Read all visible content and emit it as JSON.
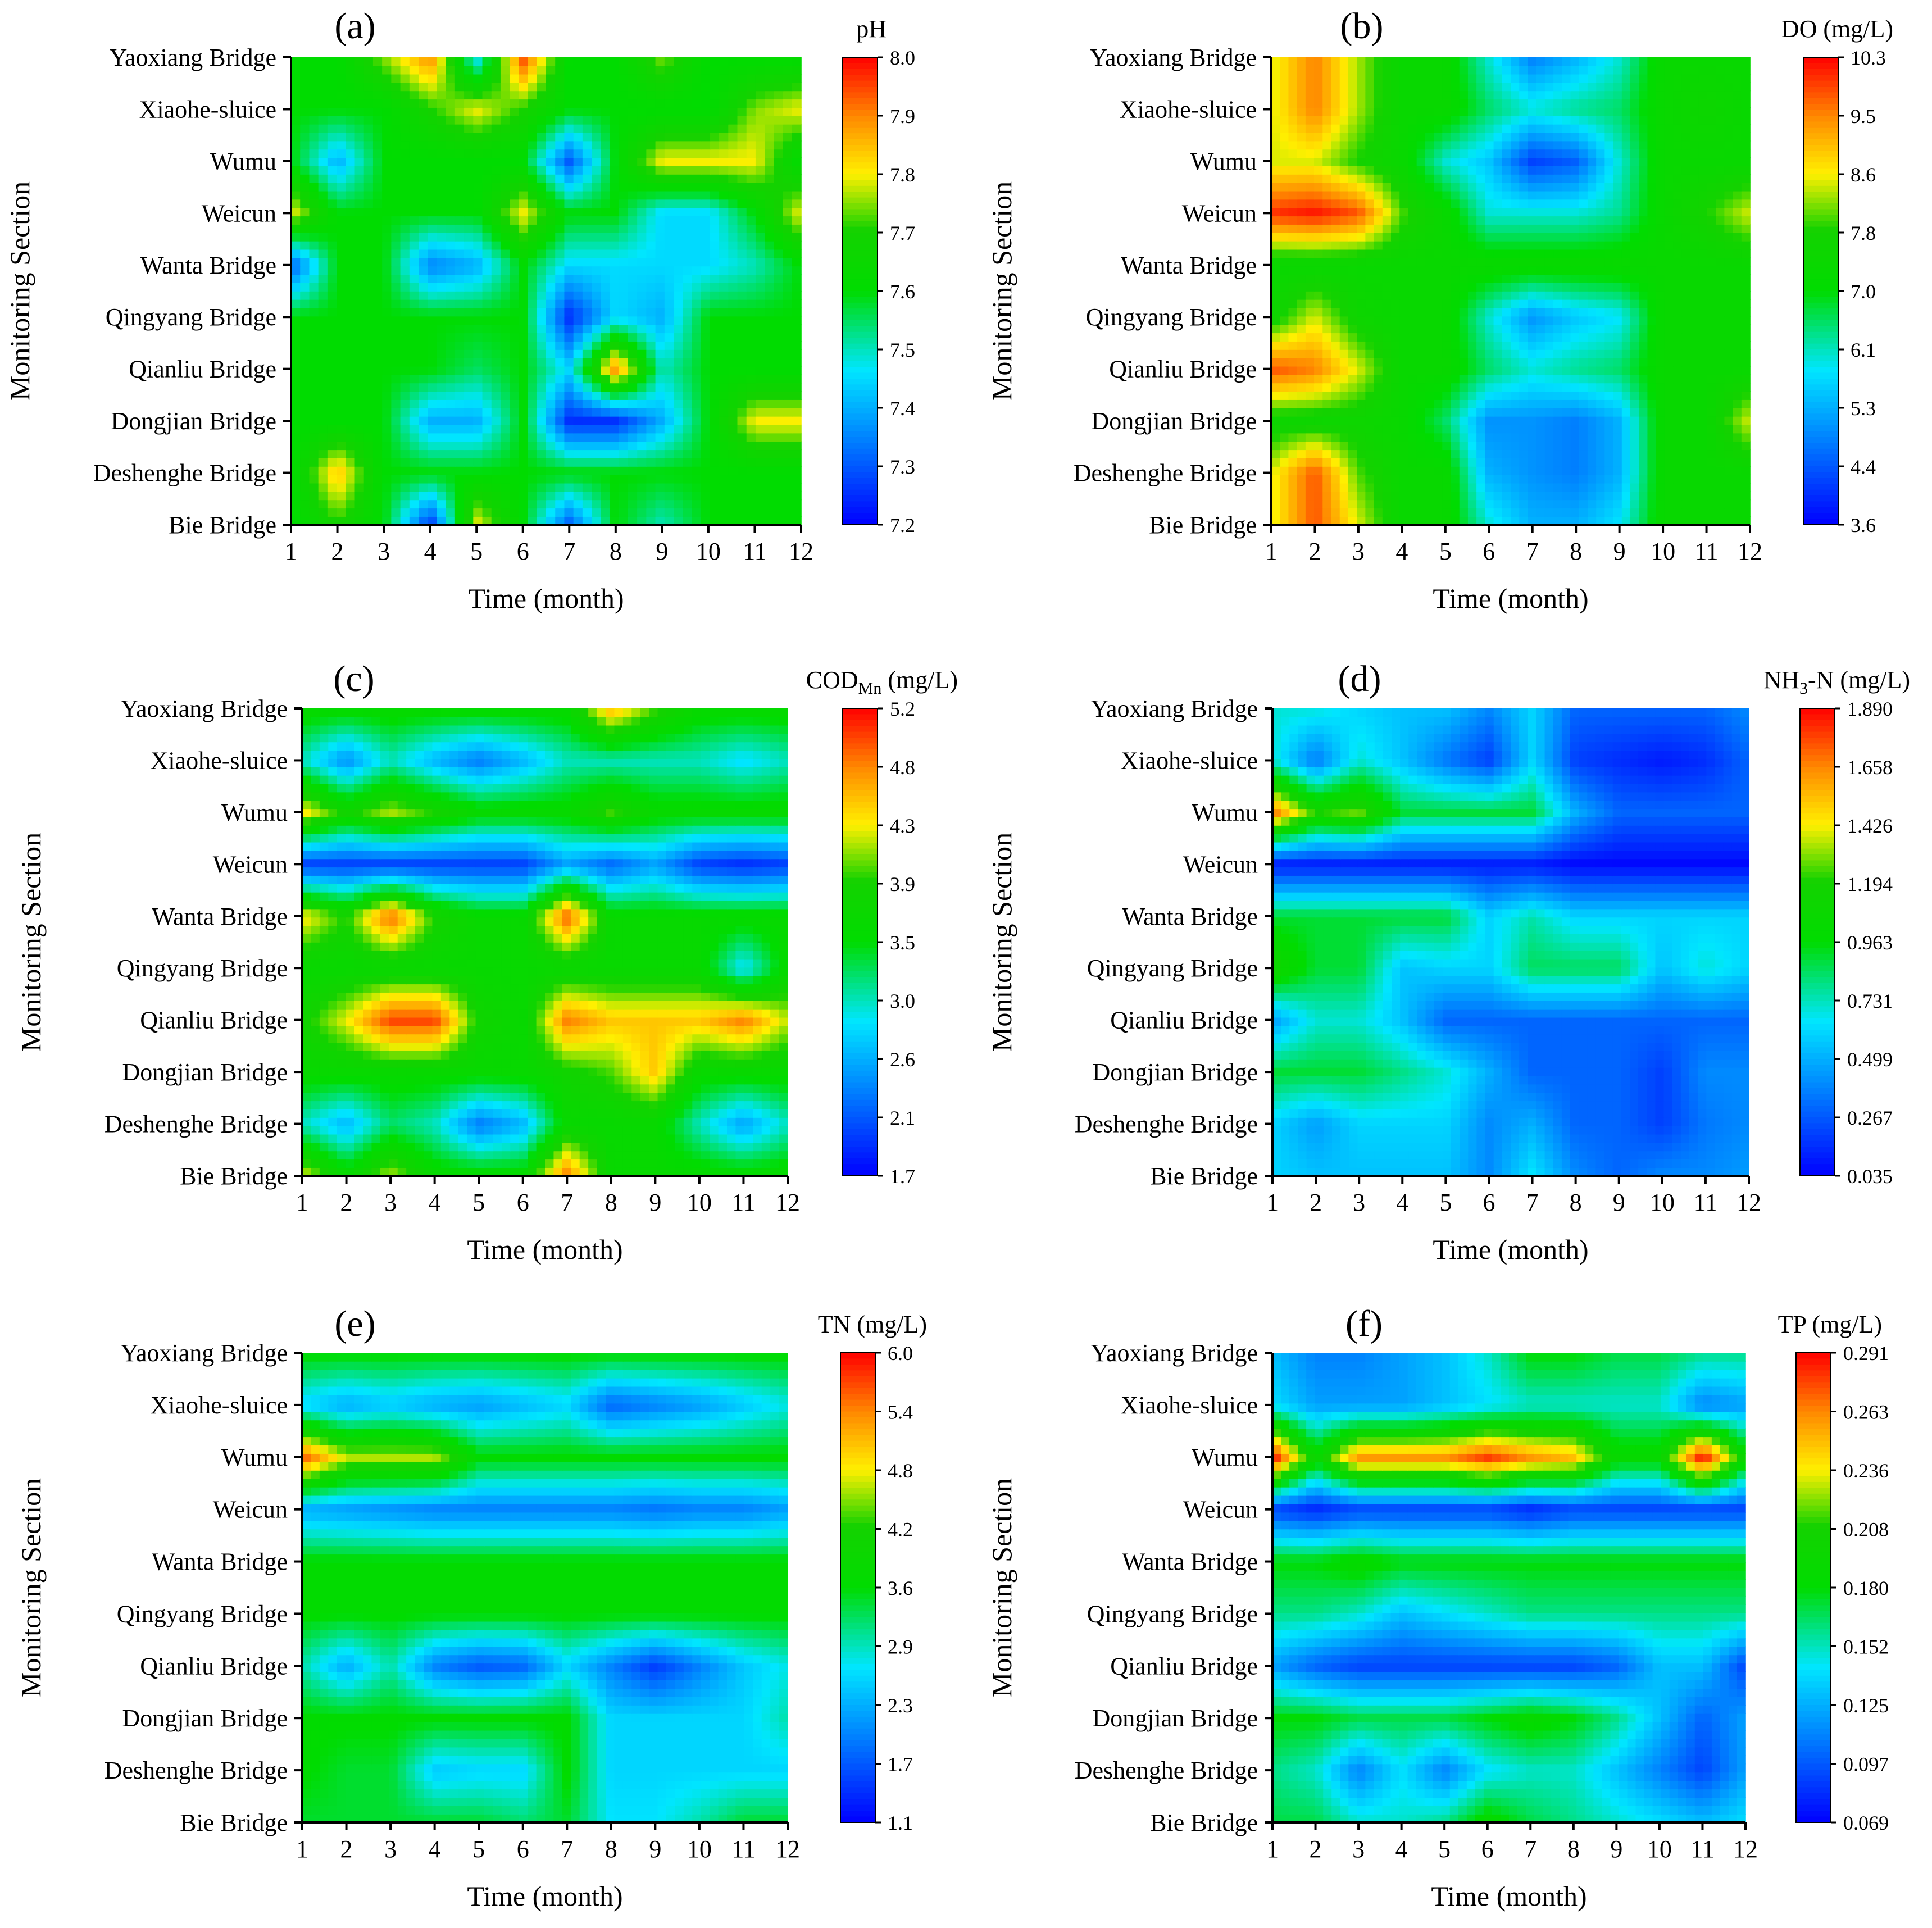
{
  "shared": {
    "sections": [
      "Bie Bridge",
      "Deshenghe Bridge",
      "Dongjian Bridge",
      "Qianliu Bridge",
      "Qingyang Bridge",
      "Wanta Bridge",
      "Weicun",
      "Wumu",
      "Xiaohe-sluice",
      "Yaoxiang Bridge"
    ],
    "months": [
      "1",
      "2",
      "3",
      "4",
      "5",
      "6",
      "7",
      "8",
      "9",
      "10",
      "11",
      "12"
    ],
    "xlabel": "Time (month)",
    "ylabel": "Monitoring Section"
  },
  "chart_data": [
    {
      "type": "heatmap",
      "panel": "(a)",
      "title": "pH",
      "unit_sub": "",
      "unit_suffix": "",
      "colorbar_ticks": [
        "8.0",
        "7.9",
        "7.8",
        "7.7",
        "7.6",
        "7.5",
        "7.4",
        "7.3",
        "7.2"
      ],
      "vmin": 7.2,
      "vmax": 8.0,
      "values": [
        [
          7.6,
          7.7,
          7.6,
          7.25,
          7.8,
          7.6,
          7.3,
          7.6,
          7.5,
          7.6,
          7.6,
          7.6
        ],
        [
          7.6,
          7.85,
          7.6,
          7.6,
          7.6,
          7.6,
          7.6,
          7.6,
          7.6,
          7.6,
          7.6,
          7.6
        ],
        [
          7.6,
          7.6,
          7.6,
          7.4,
          7.4,
          7.6,
          7.25,
          7.25,
          7.4,
          7.6,
          7.8,
          7.8
        ],
        [
          7.6,
          7.6,
          7.6,
          7.6,
          7.55,
          7.6,
          7.45,
          7.9,
          7.5,
          7.6,
          7.6,
          7.6
        ],
        [
          7.6,
          7.6,
          7.6,
          7.6,
          7.6,
          7.6,
          7.25,
          7.45,
          7.4,
          7.6,
          7.6,
          7.6
        ],
        [
          7.3,
          7.6,
          7.6,
          7.35,
          7.4,
          7.6,
          7.45,
          7.45,
          7.45,
          7.45,
          7.5,
          7.6
        ],
        [
          7.8,
          7.6,
          7.6,
          7.6,
          7.6,
          7.8,
          7.6,
          7.6,
          7.45,
          7.45,
          7.6,
          7.8
        ],
        [
          7.6,
          7.4,
          7.6,
          7.6,
          7.6,
          7.6,
          7.3,
          7.6,
          7.8,
          7.8,
          7.8,
          7.6
        ],
        [
          7.6,
          7.6,
          7.6,
          7.7,
          7.8,
          7.7,
          7.6,
          7.6,
          7.6,
          7.6,
          7.75,
          7.8
        ],
        [
          7.6,
          7.6,
          7.75,
          7.9,
          7.45,
          7.95,
          7.6,
          7.6,
          7.75,
          7.6,
          7.6,
          7.6
        ]
      ]
    },
    {
      "type": "heatmap",
      "panel": "(b)",
      "title": "DO",
      "unit_sub": "",
      "unit_suffix": " (mg/L)",
      "colorbar_ticks": [
        "10.3",
        "9.5",
        "8.6",
        "7.8",
        "7.0",
        "6.1",
        "5.3",
        "4.4",
        "3.6"
      ],
      "vmin": 3.6,
      "vmax": 10.3,
      "values": [
        [
          8.5,
          9.8,
          8.5,
          7.3,
          7.3,
          6.0,
          5.3,
          5.3,
          5.8,
          7.3,
          7.3,
          7.3
        ],
        [
          8.5,
          9.8,
          8.0,
          7.3,
          7.3,
          5.3,
          5.0,
          4.8,
          5.3,
          7.3,
          7.3,
          7.3
        ],
        [
          7.5,
          7.5,
          7.5,
          7.3,
          6.5,
          5.0,
          5.0,
          4.8,
          5.3,
          7.3,
          7.3,
          8.5
        ],
        [
          9.8,
          9.5,
          8.5,
          7.3,
          7.3,
          6.5,
          6.0,
          6.3,
          6.5,
          7.3,
          7.3,
          7.3
        ],
        [
          7.5,
          8.5,
          7.5,
          7.3,
          7.3,
          6.0,
          5.0,
          5.5,
          5.8,
          7.3,
          7.3,
          7.3
        ],
        [
          7.3,
          7.3,
          7.3,
          7.3,
          7.3,
          7.3,
          7.3,
          7.3,
          7.3,
          7.3,
          7.3,
          7.3
        ],
        [
          10.0,
          10.2,
          9.8,
          8.0,
          7.3,
          6.0,
          6.0,
          6.0,
          6.3,
          7.3,
          7.8,
          8.5
        ],
        [
          8.5,
          8.5,
          7.8,
          7.3,
          6.0,
          5.5,
          4.2,
          4.5,
          6.0,
          7.3,
          7.3,
          7.3
        ],
        [
          8.5,
          9.5,
          8.3,
          7.3,
          7.3,
          6.5,
          6.0,
          6.3,
          6.5,
          7.3,
          7.5,
          7.3
        ],
        [
          8.5,
          9.5,
          8.3,
          7.3,
          7.3,
          6.0,
          4.8,
          5.3,
          6.0,
          7.3,
          7.3,
          7.3
        ]
      ]
    },
    {
      "type": "heatmap",
      "panel": "(c)",
      "title": "COD",
      "unit_sub": "Mn",
      "unit_suffix": " (mg/L)",
      "colorbar_ticks": [
        "5.2",
        "4.8",
        "4.3",
        "3.9",
        "3.5",
        "3.0",
        "2.6",
        "2.1",
        "1.7"
      ],
      "vmin": 1.7,
      "vmax": 5.2,
      "values": [
        [
          4.3,
          3.6,
          4.2,
          3.6,
          3.6,
          3.6,
          4.8,
          3.6,
          3.6,
          3.6,
          3.6,
          3.6
        ],
        [
          3.0,
          2.6,
          3.2,
          3.0,
          2.3,
          2.6,
          3.6,
          3.6,
          3.6,
          3.0,
          2.5,
          3.0
        ],
        [
          3.6,
          3.6,
          3.6,
          3.6,
          3.6,
          3.6,
          3.8,
          4.0,
          4.5,
          3.6,
          3.6,
          3.6
        ],
        [
          3.8,
          4.3,
          5.0,
          5.0,
          3.8,
          3.6,
          4.8,
          4.5,
          4.5,
          4.5,
          4.8,
          4.2
        ],
        [
          3.6,
          3.6,
          3.6,
          3.6,
          3.6,
          3.6,
          3.6,
          3.6,
          3.6,
          3.6,
          2.8,
          3.6
        ],
        [
          4.4,
          3.9,
          4.9,
          3.9,
          3.6,
          3.6,
          4.9,
          3.6,
          3.6,
          3.6,
          3.6,
          3.6
        ],
        [
          2.0,
          2.0,
          2.0,
          2.0,
          2.0,
          2.0,
          2.5,
          2.2,
          2.5,
          2.0,
          1.9,
          2.0
        ],
        [
          4.4,
          3.8,
          4.2,
          3.9,
          3.6,
          3.6,
          3.6,
          4.0,
          3.6,
          3.6,
          3.6,
          3.6
        ],
        [
          3.0,
          2.4,
          3.0,
          2.6,
          2.3,
          2.6,
          3.0,
          3.0,
          3.0,
          3.0,
          2.8,
          3.0
        ],
        [
          3.6,
          3.6,
          3.6,
          3.6,
          3.6,
          3.6,
          3.6,
          4.6,
          4.0,
          3.6,
          3.6,
          3.6
        ]
      ]
    },
    {
      "type": "heatmap",
      "panel": "(d)",
      "title": "NH",
      "unit_sub": "3",
      "unit_suffix": "-N (mg/L)",
      "colorbar_ticks": [
        "1.890",
        "1.658",
        "1.426",
        "1.194",
        "0.963",
        "0.731",
        "0.499",
        "0.267",
        "0.035"
      ],
      "vmin": 0.035,
      "vmax": 1.89,
      "values": [
        [
          0.6,
          0.55,
          0.55,
          0.55,
          0.55,
          0.4,
          0.65,
          0.4,
          0.3,
          0.4,
          0.4,
          0.45
        ],
        [
          0.6,
          0.45,
          0.6,
          0.6,
          0.6,
          0.4,
          0.5,
          0.3,
          0.3,
          0.2,
          0.35,
          0.4
        ],
        [
          0.9,
          0.9,
          0.9,
          0.8,
          0.7,
          0.5,
          0.3,
          0.3,
          0.3,
          0.2,
          0.4,
          0.4
        ],
        [
          0.45,
          0.7,
          0.7,
          0.55,
          0.3,
          0.3,
          0.3,
          0.3,
          0.3,
          0.3,
          0.3,
          0.3
        ],
        [
          1.15,
          0.9,
          0.9,
          0.55,
          0.6,
          0.6,
          0.85,
          0.85,
          0.85,
          0.55,
          0.7,
          0.6
        ],
        [
          0.9,
          0.9,
          0.9,
          0.9,
          0.9,
          0.6,
          0.75,
          0.6,
          0.6,
          0.6,
          0.6,
          0.6
        ],
        [
          0.1,
          0.1,
          0.1,
          0.1,
          0.1,
          0.1,
          0.1,
          0.05,
          0.05,
          0.05,
          0.05,
          0.05
        ],
        [
          1.7,
          1.2,
          1.3,
          0.9,
          0.9,
          0.9,
          0.9,
          0.5,
          0.3,
          0.3,
          0.3,
          0.3
        ],
        [
          0.7,
          0.35,
          0.7,
          0.55,
          0.35,
          0.2,
          0.6,
          0.2,
          0.15,
          0.1,
          0.15,
          0.3
        ],
        [
          0.7,
          0.7,
          0.6,
          0.55,
          0.55,
          0.4,
          0.6,
          0.3,
          0.3,
          0.3,
          0.3,
          0.4
        ]
      ]
    },
    {
      "type": "heatmap",
      "panel": "(e)",
      "title": "TN",
      "unit_sub": "",
      "unit_suffix": " (mg/L)",
      "colorbar_ticks": [
        "6.0",
        "5.4",
        "4.8",
        "4.2",
        "3.6",
        "2.9",
        "2.3",
        "1.7",
        "1.1"
      ],
      "vmin": 1.1,
      "vmax": 6.0,
      "values": [
        [
          3.4,
          3.4,
          3.4,
          3.4,
          3.4,
          3.2,
          3.4,
          2.7,
          2.7,
          3.0,
          3.4,
          3.4
        ],
        [
          3.6,
          3.4,
          3.4,
          2.5,
          2.6,
          2.6,
          3.6,
          2.6,
          2.6,
          2.6,
          2.6,
          2.6
        ],
        [
          3.6,
          3.6,
          3.6,
          3.6,
          3.6,
          3.6,
          3.6,
          2.6,
          2.6,
          2.6,
          2.6,
          3.0
        ],
        [
          3.0,
          2.3,
          3.0,
          2.0,
          1.7,
          1.8,
          2.6,
          2.0,
          1.5,
          2.0,
          2.5,
          2.8
        ],
        [
          3.6,
          3.6,
          3.6,
          3.6,
          3.6,
          3.6,
          3.6,
          3.6,
          3.6,
          3.6,
          3.6,
          3.6
        ],
        [
          3.6,
          3.6,
          3.6,
          3.6,
          3.6,
          3.6,
          3.6,
          3.6,
          3.6,
          3.6,
          3.6,
          3.6
        ],
        [
          2.3,
          2.2,
          2.1,
          2.0,
          2.0,
          2.0,
          2.0,
          2.0,
          1.9,
          2.0,
          2.0,
          2.2
        ],
        [
          5.6,
          4.6,
          4.6,
          4.6,
          3.6,
          3.6,
          3.6,
          3.6,
          3.6,
          3.6,
          3.6,
          3.6
        ],
        [
          2.6,
          2.3,
          2.5,
          2.3,
          2.2,
          2.4,
          2.6,
          1.8,
          2.0,
          2.2,
          2.5,
          2.8
        ],
        [
          3.6,
          3.6,
          3.6,
          3.6,
          3.6,
          3.6,
          3.6,
          3.6,
          3.6,
          3.6,
          3.6,
          3.6
        ]
      ]
    },
    {
      "type": "heatmap",
      "panel": "(f)",
      "title": "TP",
      "unit_sub": "",
      "unit_suffix": " (mg/L)",
      "colorbar_ticks": [
        "0.291",
        "0.263",
        "0.236",
        "0.208",
        "0.180",
        "0.152",
        "0.125",
        "0.097",
        "0.069"
      ],
      "vmin": 0.069,
      "vmax": 0.291,
      "values": [
        [
          0.17,
          0.17,
          0.15,
          0.15,
          0.16,
          0.19,
          0.17,
          0.16,
          0.15,
          0.14,
          0.13,
          0.14
        ],
        [
          0.16,
          0.15,
          0.11,
          0.14,
          0.11,
          0.14,
          0.15,
          0.15,
          0.13,
          0.11,
          0.09,
          0.12
        ],
        [
          0.18,
          0.18,
          0.17,
          0.17,
          0.17,
          0.18,
          0.19,
          0.18,
          0.16,
          0.13,
          0.1,
          0.12
        ],
        [
          0.12,
          0.1,
          0.09,
          0.09,
          0.09,
          0.09,
          0.09,
          0.09,
          0.1,
          0.13,
          0.13,
          0.09
        ],
        [
          0.16,
          0.16,
          0.15,
          0.13,
          0.14,
          0.15,
          0.16,
          0.16,
          0.16,
          0.16,
          0.16,
          0.16
        ],
        [
          0.18,
          0.18,
          0.19,
          0.18,
          0.18,
          0.18,
          0.18,
          0.18,
          0.18,
          0.18,
          0.18,
          0.18
        ],
        [
          0.09,
          0.08,
          0.09,
          0.09,
          0.09,
          0.09,
          0.08,
          0.09,
          0.09,
          0.09,
          0.09,
          0.09
        ],
        [
          0.29,
          0.19,
          0.26,
          0.26,
          0.26,
          0.28,
          0.26,
          0.25,
          0.19,
          0.19,
          0.29,
          0.19
        ],
        [
          0.14,
          0.12,
          0.12,
          0.12,
          0.13,
          0.14,
          0.15,
          0.15,
          0.15,
          0.15,
          0.11,
          0.12
        ],
        [
          0.13,
          0.11,
          0.11,
          0.12,
          0.13,
          0.15,
          0.18,
          0.18,
          0.17,
          0.17,
          0.16,
          0.16
        ]
      ]
    }
  ]
}
